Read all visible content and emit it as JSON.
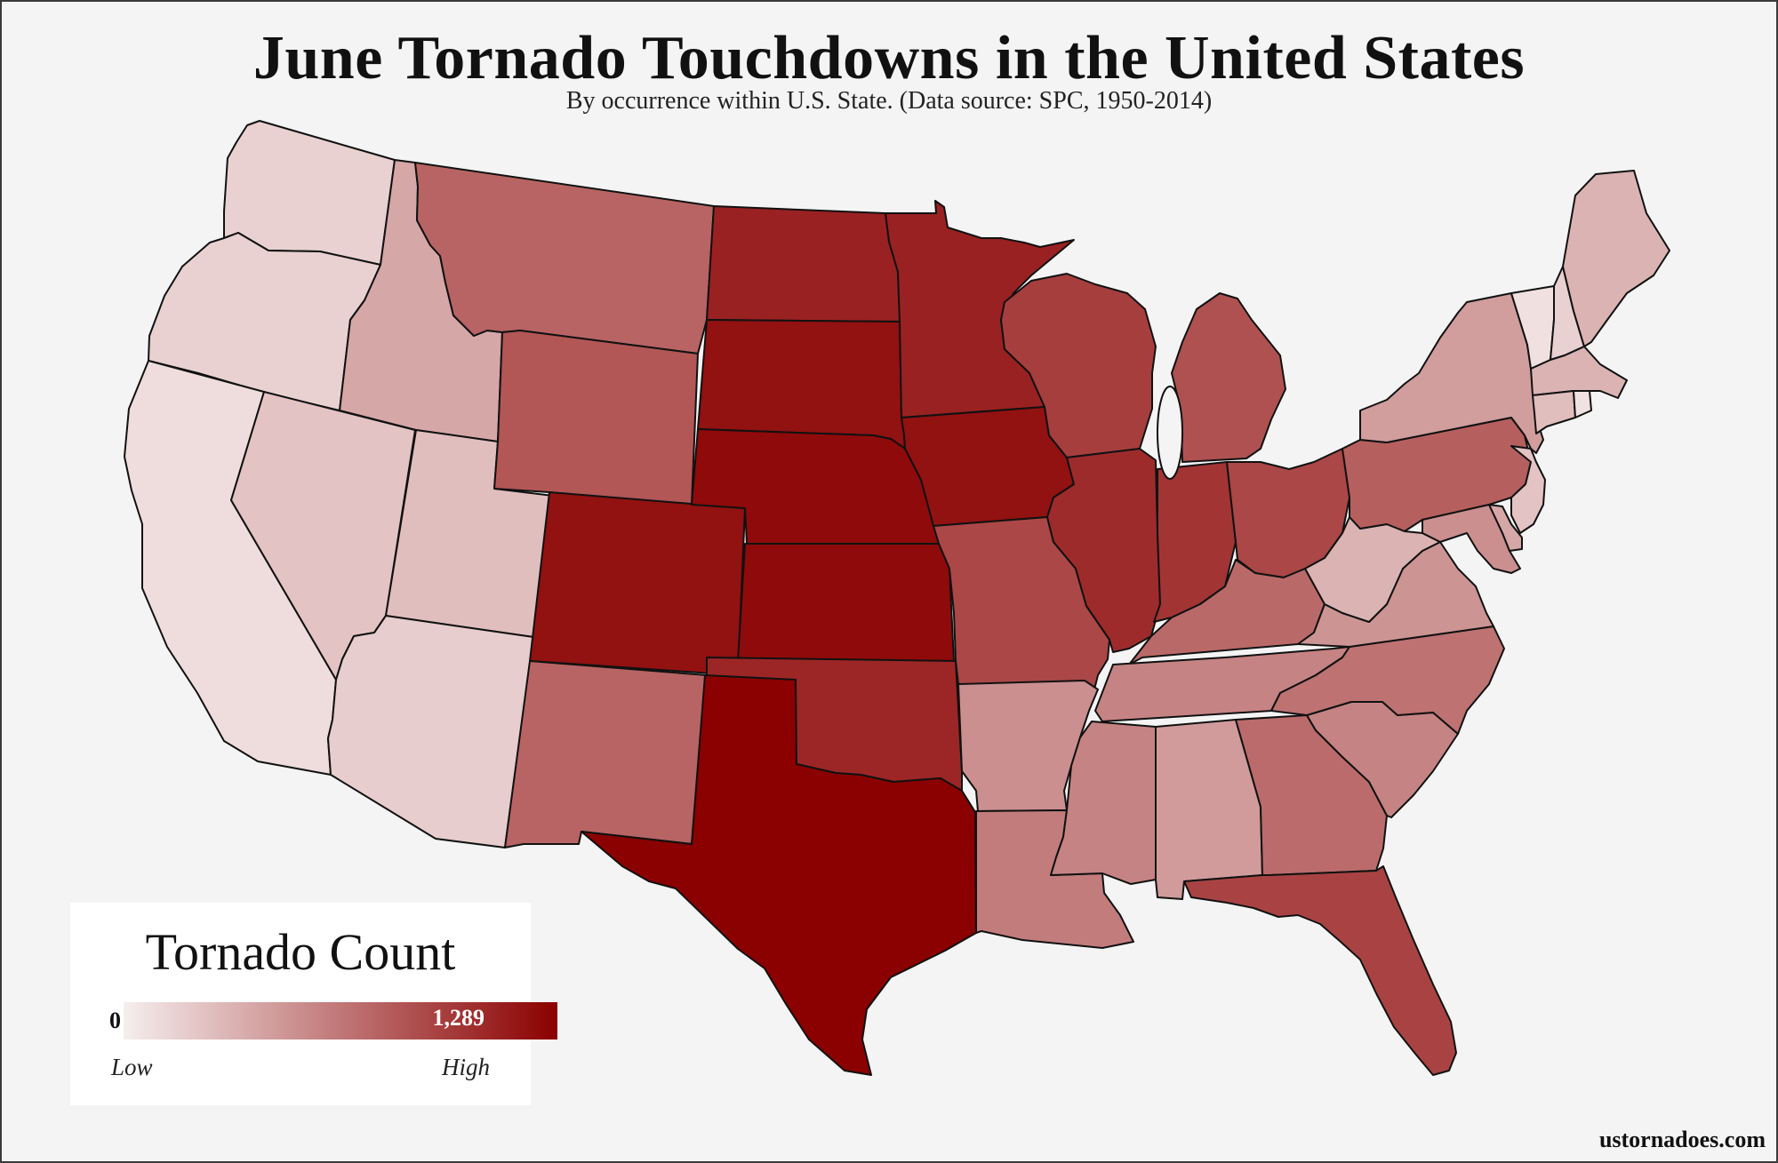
{
  "header": {
    "title": "June Tornado Touchdowns in the United States",
    "subtitle": "By occurrence within U.S. State. (Data source: SPC, 1950-2014)"
  },
  "legend": {
    "title": "Tornado Count",
    "min_label": "0",
    "max_label": "1,289",
    "low_label": "Low",
    "high_label": "High",
    "color_low": "#f6eeee",
    "color_high": "#8b0000"
  },
  "footer": {
    "credit": "ustornadoes.com"
  },
  "map_data": {
    "type": "choropleth",
    "scale_min": 0,
    "scale_max": 1289,
    "states": [
      {
        "id": "WA",
        "shade": 0.12
      },
      {
        "id": "OR",
        "shade": 0.12
      },
      {
        "id": "CA",
        "shade": 0.07
      },
      {
        "id": "NV",
        "shade": 0.18
      },
      {
        "id": "ID",
        "shade": 0.3
      },
      {
        "id": "UT",
        "shade": 0.2
      },
      {
        "id": "AZ",
        "shade": 0.14
      },
      {
        "id": "MT",
        "shade": 0.58
      },
      {
        "id": "WY",
        "shade": 0.64
      },
      {
        "id": "CO",
        "shade": 0.93
      },
      {
        "id": "NM",
        "shade": 0.58
      },
      {
        "id": "ND",
        "shade": 0.86
      },
      {
        "id": "SD",
        "shade": 0.93
      },
      {
        "id": "NE",
        "shade": 0.96
      },
      {
        "id": "KS",
        "shade": 0.96
      },
      {
        "id": "OK",
        "shade": 0.84
      },
      {
        "id": "TX",
        "shade": 1.0
      },
      {
        "id": "MN",
        "shade": 0.86
      },
      {
        "id": "IA",
        "shade": 0.93
      },
      {
        "id": "MO",
        "shade": 0.7
      },
      {
        "id": "AR",
        "shade": 0.4
      },
      {
        "id": "LA",
        "shade": 0.48
      },
      {
        "id": "WI",
        "shade": 0.74
      },
      {
        "id": "IL",
        "shade": 0.82
      },
      {
        "id": "MI",
        "shade": 0.66
      },
      {
        "id": "IN",
        "shade": 0.78
      },
      {
        "id": "OH",
        "shade": 0.7
      },
      {
        "id": "KY",
        "shade": 0.56
      },
      {
        "id": "TN",
        "shade": 0.45
      },
      {
        "id": "MS",
        "shade": 0.45
      },
      {
        "id": "AL",
        "shade": 0.35
      },
      {
        "id": "GA",
        "shade": 0.55
      },
      {
        "id": "FL",
        "shade": 0.72
      },
      {
        "id": "SC",
        "shade": 0.45
      },
      {
        "id": "NC",
        "shade": 0.52
      },
      {
        "id": "VA",
        "shade": 0.38
      },
      {
        "id": "WV",
        "shade": 0.25
      },
      {
        "id": "PA",
        "shade": 0.6
      },
      {
        "id": "NY",
        "shade": 0.34
      },
      {
        "id": "MD",
        "shade": 0.4
      },
      {
        "id": "DE",
        "shade": 0.3
      },
      {
        "id": "NJ",
        "shade": 0.18
      },
      {
        "id": "VT",
        "shade": 0.06
      },
      {
        "id": "NH",
        "shade": 0.12
      },
      {
        "id": "ME",
        "shade": 0.25
      },
      {
        "id": "MA",
        "shade": 0.25
      },
      {
        "id": "CT",
        "shade": 0.2
      },
      {
        "id": "RI",
        "shade": 0.05
      }
    ]
  }
}
